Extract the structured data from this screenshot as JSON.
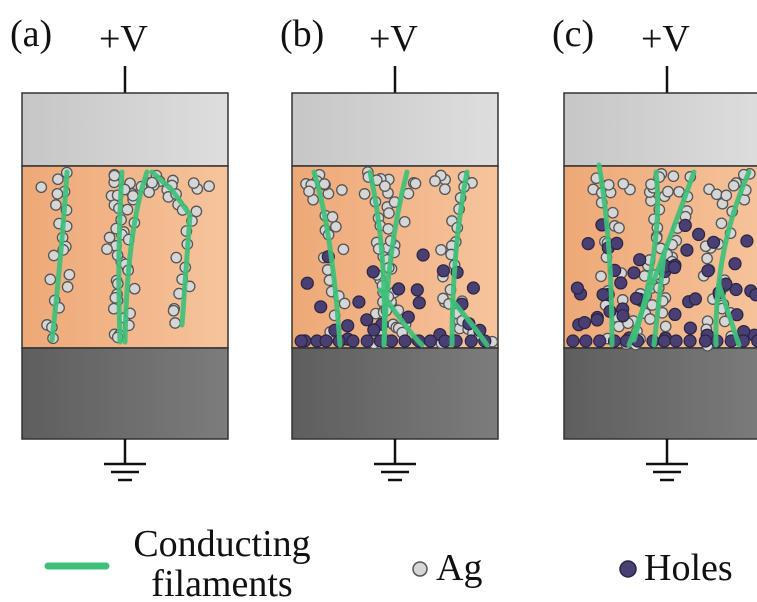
{
  "panels": [
    {
      "label": "(a)",
      "voltage": "+V",
      "holes": false
    },
    {
      "label": "(b)",
      "voltage": "+V",
      "holes": true
    },
    {
      "label": "(c)",
      "voltage": "+V",
      "holes": true
    }
  ],
  "legend": {
    "filament_line1": "Conducting",
    "filament_line2": "filaments",
    "ag": "Ag",
    "holes": "Holes"
  },
  "colors": {
    "top_electrode": "#d2d2d2",
    "bottom_electrode": "#6e6e6e",
    "layer": "#f2b486",
    "filament": "#3ec07a",
    "ag_fill": "#d6d6d6",
    "hole_fill": "#4a3f73"
  }
}
